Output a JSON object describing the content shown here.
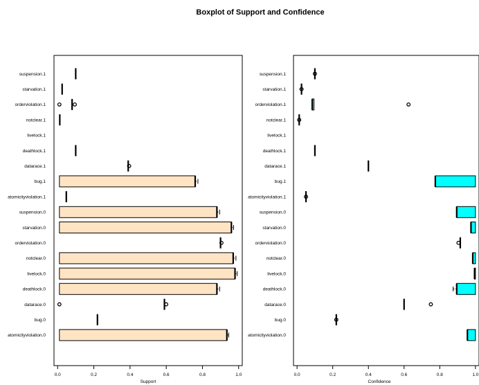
{
  "chart_data": {
    "title": "Boxplot of Support and Confidence",
    "categories": [
      "suspension.1",
      "starvation.1",
      "orderviolation.1",
      "notclear.1",
      "livelock.1",
      "deathlock.1",
      "datarace.1",
      "bug.1",
      "atomicityviolation.1",
      "suspension.0",
      "starvation.0",
      "orderviolation.0",
      "notclear.0",
      "livelock.0",
      "deathlock.0",
      "datarace.0",
      "bug.0",
      "atomicityviolation.0"
    ],
    "panels": [
      {
        "type": "boxplot",
        "orientation": "horizontal",
        "xlabel": "Support",
        "xticks": [
          "0.0",
          "0.2",
          "0.4",
          "0.6",
          "0.8",
          "1.0"
        ],
        "xlim": [
          -0.02,
          1.02
        ],
        "box_color": "#ffe4c4",
        "series": [
          {
            "category": "suspension.1",
            "min": 0.1,
            "q1": 0.1,
            "median": 0.1,
            "q3": 0.1,
            "max": 0.1,
            "outliers": []
          },
          {
            "category": "starvation.1",
            "min": 0.025,
            "q1": 0.025,
            "median": 0.025,
            "q3": 0.025,
            "max": 0.025,
            "outliers": []
          },
          {
            "category": "orderviolation.1",
            "min": 0.08,
            "q1": 0.08,
            "median": 0.08,
            "q3": 0.08,
            "max": 0.08,
            "outliers": [
              0.01,
              0.095
            ]
          },
          {
            "category": "notclear.1",
            "min": 0.012,
            "q1": 0.012,
            "median": 0.012,
            "q3": 0.012,
            "max": 0.012,
            "outliers": []
          },
          {
            "category": "livelock.1",
            "min": null,
            "q1": null,
            "median": null,
            "q3": null,
            "max": null,
            "outliers": []
          },
          {
            "category": "deathlock.1",
            "min": 0.1,
            "q1": 0.1,
            "median": 0.1,
            "q3": 0.1,
            "max": 0.1,
            "outliers": []
          },
          {
            "category": "datarace.1",
            "min": 0.39,
            "q1": 0.39,
            "median": 0.39,
            "q3": 0.39,
            "max": 0.39,
            "outliers": [
              0.395
            ]
          },
          {
            "category": "bug.1",
            "min": 0.01,
            "q1": 0.01,
            "median": 0.76,
            "q3": 0.76,
            "max": 0.775,
            "outliers": []
          },
          {
            "category": "atomicityviolation.1",
            "min": 0.048,
            "q1": 0.048,
            "median": 0.048,
            "q3": 0.048,
            "max": 0.048,
            "outliers": []
          },
          {
            "category": "suspension.0",
            "min": 0.01,
            "q1": 0.01,
            "median": 0.88,
            "q3": 0.88,
            "max": 0.895,
            "outliers": []
          },
          {
            "category": "starvation.0",
            "min": 0.01,
            "q1": 0.01,
            "median": 0.96,
            "q3": 0.96,
            "max": 0.972,
            "outliers": []
          },
          {
            "category": "orderviolation.0",
            "min": 0.9,
            "q1": 0.9,
            "median": 0.9,
            "q3": 0.9,
            "max": 0.9,
            "outliers": [
              0.905
            ]
          },
          {
            "category": "notclear.0",
            "min": 0.01,
            "q1": 0.01,
            "median": 0.97,
            "q3": 0.97,
            "max": 0.985,
            "outliers": []
          },
          {
            "category": "livelock.0",
            "min": 0.01,
            "q1": 0.01,
            "median": 0.98,
            "q3": 0.98,
            "max": 0.992,
            "outliers": []
          },
          {
            "category": "deathlock.0",
            "min": 0.01,
            "q1": 0.01,
            "median": 0.88,
            "q3": 0.88,
            "max": 0.895,
            "outliers": []
          },
          {
            "category": "datarace.0",
            "min": 0.59,
            "q1": 0.59,
            "median": 0.59,
            "q3": 0.59,
            "max": 0.59,
            "outliers": [
              0.01,
              0.6
            ]
          },
          {
            "category": "bug.0",
            "min": 0.22,
            "q1": 0.22,
            "median": 0.22,
            "q3": 0.22,
            "max": 0.22,
            "outliers": []
          },
          {
            "category": "atomicityviolation.0",
            "min": 0.01,
            "q1": 0.01,
            "median": 0.935,
            "q3": 0.935,
            "max": 0.945,
            "outliers": []
          }
        ]
      },
      {
        "type": "boxplot",
        "orientation": "horizontal",
        "xlabel": "Confidence",
        "xticks": [
          "0.0",
          "0.2",
          "0.4",
          "0.6",
          "0.8",
          "1.0"
        ],
        "xlim": [
          -0.02,
          1.02
        ],
        "box_color": "#00ffff",
        "series": [
          {
            "category": "suspension.1",
            "min": 0.1,
            "q1": 0.1,
            "median": 0.1,
            "q3": 0.1,
            "max": 0.1,
            "outliers": [
              0.1
            ]
          },
          {
            "category": "starvation.1",
            "min": 0.025,
            "q1": 0.025,
            "median": 0.025,
            "q3": 0.025,
            "max": 0.025,
            "outliers": [
              0.025
            ]
          },
          {
            "category": "orderviolation.1",
            "min": 0.085,
            "q1": 0.085,
            "median": 0.085,
            "q3": 0.095,
            "max": 0.095,
            "outliers": [
              0.625
            ]
          },
          {
            "category": "notclear.1",
            "min": 0.012,
            "q1": 0.012,
            "median": 0.012,
            "q3": 0.012,
            "max": 0.012,
            "outliers": [
              0.012
            ]
          },
          {
            "category": "livelock.1",
            "min": null,
            "q1": null,
            "median": null,
            "q3": null,
            "max": null,
            "outliers": []
          },
          {
            "category": "deathlock.1",
            "min": 0.1,
            "q1": 0.1,
            "median": 0.1,
            "q3": 0.1,
            "max": 0.1,
            "outliers": []
          },
          {
            "category": "datarace.1",
            "min": 0.4,
            "q1": 0.4,
            "median": 0.4,
            "q3": 0.4,
            "max": 0.4,
            "outliers": []
          },
          {
            "category": "bug.1",
            "min": 0.775,
            "q1": 0.775,
            "median": 0.775,
            "q3": 1.0,
            "max": 1.0,
            "outliers": []
          },
          {
            "category": "atomicityviolation.1",
            "min": 0.05,
            "q1": 0.05,
            "median": 0.05,
            "q3": 0.05,
            "max": 0.05,
            "outliers": [
              0.05
            ]
          },
          {
            "category": "suspension.0",
            "min": 0.895,
            "q1": 0.895,
            "median": 0.895,
            "q3": 1.0,
            "max": 1.0,
            "outliers": []
          },
          {
            "category": "starvation.0",
            "min": 0.975,
            "q1": 0.975,
            "median": 0.975,
            "q3": 1.0,
            "max": 1.0,
            "outliers": []
          },
          {
            "category": "orderviolation.0",
            "min": 0.915,
            "q1": 0.915,
            "median": 0.915,
            "q3": 0.915,
            "max": 0.915,
            "outliers": [
              0.905
            ]
          },
          {
            "category": "notclear.0",
            "min": 0.985,
            "q1": 0.985,
            "median": 0.985,
            "q3": 1.0,
            "max": 1.0,
            "outliers": []
          },
          {
            "category": "livelock.0",
            "min": 0.995,
            "q1": 0.995,
            "median": 0.995,
            "q3": 1.0,
            "max": 1.0,
            "outliers": []
          },
          {
            "category": "deathlock.0",
            "min": 0.875,
            "q1": 0.895,
            "median": 0.895,
            "q3": 1.0,
            "max": 1.0,
            "outliers": []
          },
          {
            "category": "datarace.0",
            "min": 0.6,
            "q1": 0.6,
            "median": 0.6,
            "q3": 0.6,
            "max": 0.6,
            "outliers": [
              0.75
            ]
          },
          {
            "category": "bug.0",
            "min": 0.22,
            "q1": 0.22,
            "median": 0.22,
            "q3": 0.22,
            "max": 0.22,
            "outliers": [
              0.22
            ]
          },
          {
            "category": "atomicityviolation.0",
            "min": 0.955,
            "q1": 0.955,
            "median": 0.955,
            "q3": 1.0,
            "max": 1.0,
            "outliers": []
          }
        ]
      }
    ]
  }
}
